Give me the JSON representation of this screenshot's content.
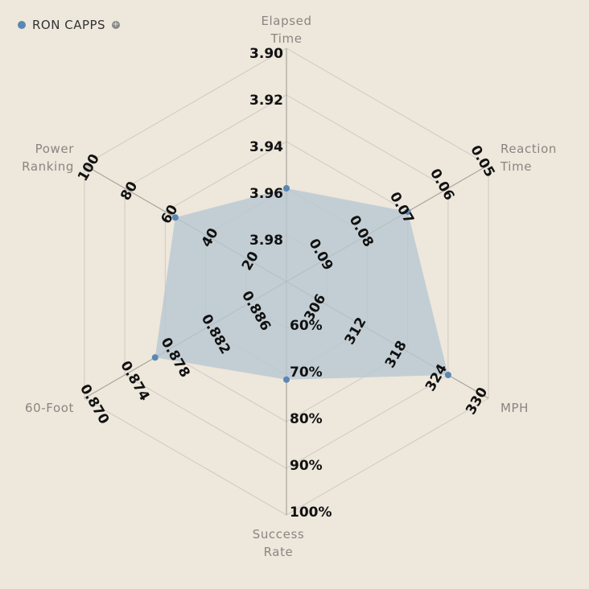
{
  "legend": {
    "label": "Ron Capps",
    "add_symbol": "+"
  },
  "colors": {
    "background": "#ede7dc",
    "series": "#5b87b3",
    "fill": "#b7c7d2",
    "grid": "#cfcac2",
    "axis": "#aaa59c",
    "axis_label": "#8a8580",
    "tick": "#111111"
  },
  "chart_data": {
    "type": "radar",
    "grid": true,
    "legend_position": "top-left",
    "axes": [
      {
        "label": [
          "Elapsed",
          "Time"
        ],
        "ticks": [
          "3.90",
          "3.92",
          "3.94",
          "3.96",
          "3.98"
        ],
        "range": [
          4.0,
          3.9
        ]
      },
      {
        "label": [
          "Reaction",
          "Time"
        ],
        "ticks": [
          "0.05",
          "0.06",
          "0.07",
          "0.08",
          "0.09"
        ],
        "range": [
          0.1,
          0.05
        ]
      },
      {
        "label": [
          "MPH"
        ],
        "ticks": [
          "330",
          "324",
          "318",
          "312",
          "306"
        ],
        "range": [
          300,
          330
        ]
      },
      {
        "label": [
          "Success",
          "Rate"
        ],
        "ticks": [
          "100%",
          "90%",
          "80%",
          "70%",
          "60%"
        ],
        "range": [
          50,
          100
        ]
      },
      {
        "label": [
          "60-Foot"
        ],
        "ticks": [
          "0.870",
          "0.874",
          "0.878",
          "0.882",
          "0.886"
        ],
        "range": [
          0.89,
          0.87
        ]
      },
      {
        "label": [
          "Power",
          "Ranking"
        ],
        "ticks": [
          "100",
          "80",
          "60",
          "40",
          "20"
        ],
        "range": [
          0,
          100
        ]
      }
    ],
    "series": [
      {
        "name": "Ron Capps",
        "values": [
          3.96,
          0.07,
          324,
          71,
          0.877,
          55
        ]
      }
    ]
  }
}
